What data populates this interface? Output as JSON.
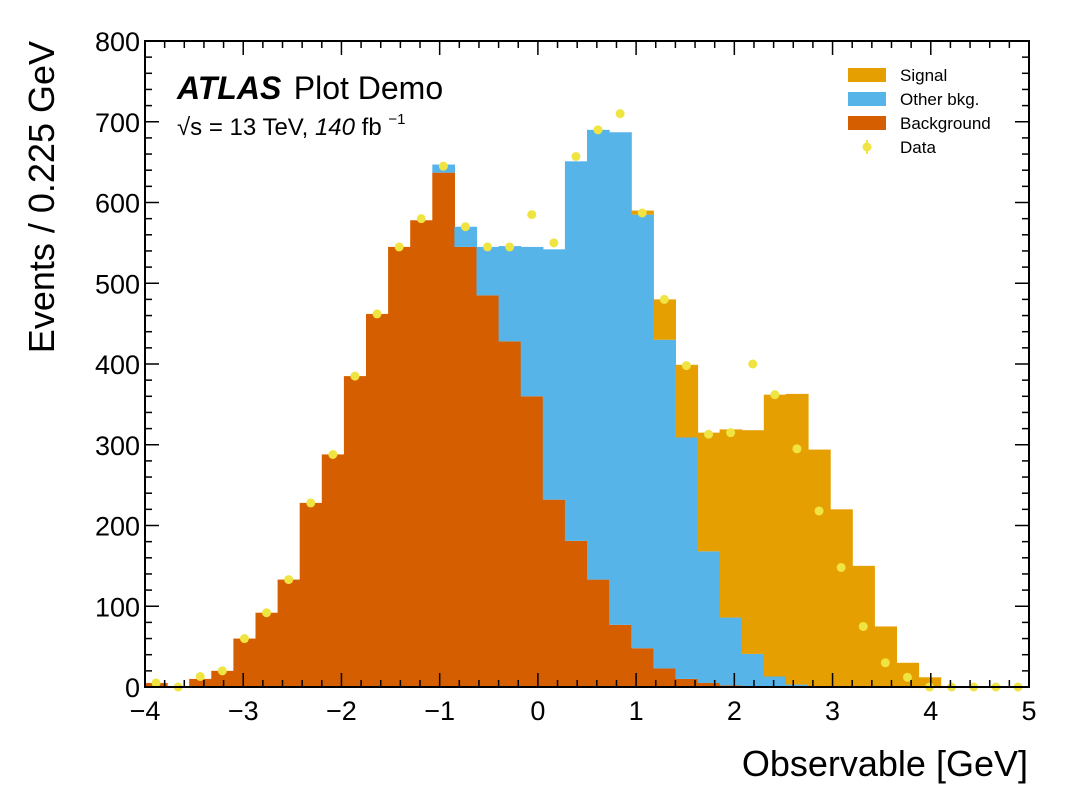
{
  "chart_data": {
    "type": "histogram",
    "stacked": true,
    "xlabel": "Observable [GeV]",
    "ylabel": "Events / 0.225 GeV",
    "xlim": [
      -4,
      5
    ],
    "ylim": [
      0,
      800
    ],
    "bin_width": 0.225,
    "xticks": [
      "−4",
      "−3",
      "−2",
      "−1",
      "0",
      "1",
      "2",
      "3",
      "4",
      "5"
    ],
    "xtick_values": [
      -4,
      -3,
      -2,
      -1,
      0,
      1,
      2,
      3,
      4,
      5
    ],
    "yticks": [
      "0",
      "100",
      "200",
      "300",
      "400",
      "500",
      "600",
      "700",
      "800"
    ],
    "ytick_values": [
      0,
      100,
      200,
      300,
      400,
      500,
      600,
      700,
      800
    ],
    "atlas_label": "ATLAS",
    "plot_label": "Plot Demo",
    "energy_label": {
      "sqrt": "√s",
      "eq": " = 13 TeV, ",
      "lumi": "140",
      "unit": " fb",
      "exp": "−1"
    },
    "legend": {
      "position": "top-right",
      "entries": [
        {
          "label": "Signal",
          "color": "#e69f00",
          "kind": "fill"
        },
        {
          "label": "Other bkg.",
          "color": "#56b4e9",
          "kind": "fill"
        },
        {
          "label": "Background",
          "color": "#d55e00",
          "kind": "fill"
        },
        {
          "label": "Data",
          "color": "#f0e442",
          "kind": "marker"
        }
      ]
    },
    "series": [
      {
        "name": "Background",
        "color": "#d55e00",
        "values": [
          5,
          0,
          10,
          20,
          60,
          92,
          133,
          228,
          288,
          385,
          462,
          545,
          578,
          637,
          545,
          485,
          428,
          360,
          232,
          181,
          133,
          77,
          48,
          23,
          10,
          5,
          2,
          1,
          0,
          0,
          0,
          0,
          0,
          0,
          0,
          0,
          0,
          0,
          0,
          0
        ]
      },
      {
        "name": "Other bkg.",
        "color": "#56b4e9",
        "values": [
          0,
          0,
          0,
          0,
          0,
          0,
          0,
          0,
          0,
          0,
          0,
          0,
          0,
          10,
          25,
          60,
          118,
          185,
          310,
          470,
          557,
          610,
          537,
          407,
          299,
          163,
          84,
          40,
          13,
          3,
          1,
          0,
          0,
          0,
          0,
          0,
          0,
          0,
          0,
          0
        ]
      },
      {
        "name": "Signal",
        "color": "#e69f00",
        "values": [
          0,
          0,
          0,
          0,
          0,
          0,
          0,
          0,
          0,
          0,
          0,
          0,
          0,
          0,
          0,
          0,
          0,
          0,
          0,
          0,
          0,
          0,
          5,
          50,
          90,
          147,
          233,
          277,
          349,
          360,
          293,
          220,
          150,
          75,
          30,
          12,
          0,
          0,
          0,
          0
        ]
      }
    ],
    "data": {
      "name": "Data",
      "color": "#f0e442",
      "values": [
        5,
        0,
        13,
        20,
        60,
        92,
        133,
        228,
        288,
        385,
        462,
        545,
        580,
        645,
        570,
        545,
        545,
        585,
        550,
        657,
        690,
        710,
        587,
        480,
        398,
        313,
        315,
        400,
        362,
        295,
        218,
        148,
        75,
        30,
        12,
        0,
        0,
        0,
        0,
        0
      ]
    }
  }
}
